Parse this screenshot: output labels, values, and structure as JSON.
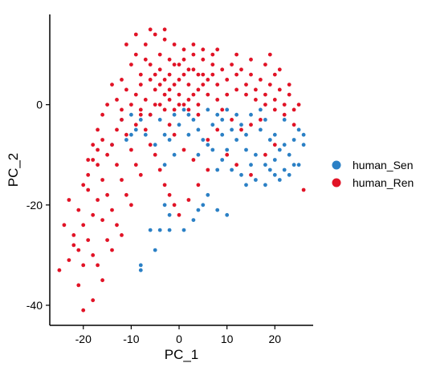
{
  "chart_data": {
    "type": "scatter",
    "title": "",
    "xlabel": "PC_1",
    "ylabel": "PC_2",
    "xlim": [
      -27,
      28
    ],
    "ylim": [
      -44,
      18
    ],
    "xticks": [
      -20,
      -10,
      0,
      10,
      20
    ],
    "xtick_labels": [
      "-20",
      "-10",
      "0",
      "10",
      "20"
    ],
    "yticks": [
      0,
      -20,
      -40
    ],
    "ytick_labels": [
      "0",
      "-20",
      "-40"
    ],
    "grid": false,
    "legend_position": "right",
    "series": [
      {
        "name": "human_Sen",
        "color": "#2B80C5",
        "points": [
          [
            -8,
            -33
          ],
          [
            -8,
            -32
          ],
          [
            -5,
            -29
          ],
          [
            -6,
            -25
          ],
          [
            -4,
            -25
          ],
          [
            -2,
            -25
          ],
          [
            1,
            -25
          ],
          [
            -3,
            -20
          ],
          [
            -2,
            -22
          ],
          [
            3,
            -23
          ],
          [
            4,
            -21
          ],
          [
            5,
            -20
          ],
          [
            6,
            -18
          ],
          [
            8,
            -21
          ],
          [
            10,
            -22
          ],
          [
            -7,
            -6
          ],
          [
            -5,
            -8
          ],
          [
            -3,
            -6
          ],
          [
            -2,
            -7
          ],
          [
            -10,
            -6
          ],
          [
            -11,
            -7
          ],
          [
            -9,
            -5
          ],
          [
            4,
            -5
          ],
          [
            7,
            -4
          ],
          [
            9,
            -3
          ],
          [
            11,
            -5
          ],
          [
            13,
            -4
          ],
          [
            15,
            -2
          ],
          [
            17,
            -1
          ],
          [
            18,
            -3
          ],
          [
            12,
            -7
          ],
          [
            14,
            -9
          ],
          [
            16,
            -10
          ],
          [
            18,
            -12
          ],
          [
            20,
            -11
          ],
          [
            21,
            -9
          ],
          [
            22,
            -8
          ],
          [
            23,
            -10
          ],
          [
            22,
            -13
          ],
          [
            20,
            -14
          ],
          [
            24,
            -7
          ],
          [
            25,
            -5
          ],
          [
            26,
            -6
          ],
          [
            24,
            -12
          ],
          [
            21,
            -15
          ],
          [
            19,
            -13
          ],
          [
            15,
            -12
          ],
          [
            13,
            -14
          ],
          [
            11,
            -13
          ],
          [
            9,
            -11
          ],
          [
            7,
            -9
          ],
          [
            5,
            -7
          ],
          [
            3,
            -3
          ],
          [
            6,
            -1
          ],
          [
            8,
            -2
          ],
          [
            10,
            -1
          ],
          [
            2,
            -2
          ],
          [
            0,
            -4
          ],
          [
            1,
            -1
          ],
          [
            -1,
            -2
          ],
          [
            -4,
            -3
          ],
          [
            -6,
            -2
          ],
          [
            -8,
            -3
          ],
          [
            -10,
            -2
          ],
          [
            16,
            -15
          ],
          [
            18,
            -16
          ],
          [
            23,
            -14
          ],
          [
            25,
            -12
          ],
          [
            26,
            -8
          ],
          [
            19,
            -7
          ],
          [
            17,
            -5
          ],
          [
            14,
            -6
          ],
          [
            12,
            -2
          ],
          [
            9,
            -6
          ],
          [
            6,
            -8
          ],
          [
            4,
            -10
          ],
          [
            2,
            -6
          ],
          [
            -12,
            -3
          ],
          [
            14,
            -16
          ],
          [
            20,
            -6
          ],
          [
            22,
            -3
          ],
          [
            -14,
            -8
          ],
          [
            10,
            -9
          ],
          [
            8,
            -13
          ],
          [
            -1,
            -10
          ],
          [
            -3,
            -12
          ]
        ]
      },
      {
        "name": "human_Ren",
        "color": "#E11326",
        "points": [
          [
            -25,
            -33
          ],
          [
            -20,
            -41
          ],
          [
            -18,
            -39
          ],
          [
            -21,
            -36
          ],
          [
            -23,
            -31
          ],
          [
            -21,
            -29
          ],
          [
            -19,
            -27
          ],
          [
            -17,
            -32
          ],
          [
            -16,
            -35
          ],
          [
            -22,
            -26
          ],
          [
            -20,
            -24
          ],
          [
            -18,
            -22
          ],
          [
            -21,
            -21
          ],
          [
            -23,
            -19
          ],
          [
            -19,
            -17
          ],
          [
            -17,
            -19
          ],
          [
            -16,
            -23
          ],
          [
            -15,
            -27
          ],
          [
            -14,
            -29
          ],
          [
            -18,
            -30
          ],
          [
            -20,
            -32
          ],
          [
            -22,
            -28
          ],
          [
            -24,
            -24
          ],
          [
            -19,
            -14
          ],
          [
            -17,
            -12
          ],
          [
            -16,
            -15
          ],
          [
            -15,
            -18
          ],
          [
            -14,
            -21
          ],
          [
            -13,
            -24
          ],
          [
            -12,
            -26
          ],
          [
            -15,
            -10
          ],
          [
            -14,
            -8
          ],
          [
            -13,
            -12
          ],
          [
            -12,
            -15
          ],
          [
            -11,
            -18
          ],
          [
            -10,
            -20
          ],
          [
            -16,
            -7
          ],
          [
            -17,
            -9
          ],
          [
            -18,
            -11
          ],
          [
            -13,
            -5
          ],
          [
            -12,
            -3
          ],
          [
            -11,
            -6
          ],
          [
            -10,
            -9
          ],
          [
            -9,
            -12
          ],
          [
            -8,
            -14
          ],
          [
            -9,
            -4
          ],
          [
            -8,
            -2
          ],
          [
            -7,
            -5
          ],
          [
            -6,
            -8
          ],
          [
            -5,
            -10
          ],
          [
            -4,
            -13
          ],
          [
            -3,
            -16
          ],
          [
            -2,
            -18
          ],
          [
            -1,
            -20
          ],
          [
            0,
            -22
          ],
          [
            2,
            -19
          ],
          [
            4,
            -16
          ],
          [
            6,
            -13
          ],
          [
            3,
            -11
          ],
          [
            1,
            -9
          ],
          [
            -1,
            -6
          ],
          [
            -2,
            -4
          ],
          [
            -10,
            8
          ],
          [
            -12,
            5
          ],
          [
            -11,
            3
          ],
          [
            -13,
            1
          ],
          [
            -9,
            10
          ],
          [
            -7,
            12
          ],
          [
            -5,
            14
          ],
          [
            -3,
            13
          ],
          [
            -1,
            12
          ],
          [
            1,
            11
          ],
          [
            3,
            10
          ],
          [
            5,
            9
          ],
          [
            7,
            8
          ],
          [
            -8,
            6
          ],
          [
            -6,
            5
          ],
          [
            -4,
            4
          ],
          [
            -2,
            3
          ],
          [
            0,
            2
          ],
          [
            2,
            1
          ],
          [
            4,
            0
          ],
          [
            -9,
            2
          ],
          [
            -7,
            1
          ],
          [
            -5,
            0
          ],
          [
            -3,
            -1
          ],
          [
            -1,
            -1
          ],
          [
            1,
            0
          ],
          [
            3,
            2
          ],
          [
            5,
            4
          ],
          [
            7,
            6
          ],
          [
            9,
            7
          ],
          [
            11,
            8
          ],
          [
            13,
            7
          ],
          [
            15,
            6
          ],
          [
            17,
            5
          ],
          [
            19,
            4
          ],
          [
            21,
            3
          ],
          [
            23,
            2
          ],
          [
            -6,
            8
          ],
          [
            -4,
            7
          ],
          [
            -2,
            6
          ],
          [
            0,
            5
          ],
          [
            2,
            4
          ],
          [
            4,
            3
          ],
          [
            6,
            2
          ],
          [
            8,
            1
          ],
          [
            10,
            2
          ],
          [
            12,
            3
          ],
          [
            14,
            4
          ],
          [
            16,
            3
          ],
          [
            18,
            2
          ],
          [
            20,
            1
          ],
          [
            22,
            0
          ],
          [
            24,
            -1
          ],
          [
            -8,
            4
          ],
          [
            -5,
            3
          ],
          [
            -3,
            2
          ],
          [
            -1,
            4
          ],
          [
            1,
            6
          ],
          [
            3,
            7
          ],
          [
            5,
            6
          ],
          [
            -7,
            9
          ],
          [
            -4,
            10
          ],
          [
            -2,
            9
          ],
          [
            0,
            8
          ],
          [
            2,
            7
          ],
          [
            4,
            6
          ],
          [
            6,
            5
          ],
          [
            8,
            4
          ],
          [
            10,
            5
          ],
          [
            12,
            6
          ],
          [
            14,
            2
          ],
          [
            16,
            1
          ],
          [
            18,
            0
          ],
          [
            20,
            -1
          ],
          [
            22,
            -2
          ],
          [
            17,
            -3
          ],
          [
            15,
            -4
          ],
          [
            13,
            -5
          ],
          [
            11,
            -3
          ],
          [
            9,
            -1
          ],
          [
            18,
            8
          ],
          [
            20,
            6
          ],
          [
            15,
            9
          ],
          [
            12,
            10
          ],
          [
            8,
            11
          ],
          [
            -3,
            15
          ],
          [
            -6,
            15
          ],
          [
            -9,
            14
          ],
          [
            -11,
            12
          ],
          [
            10,
            -10
          ],
          [
            12,
            -12
          ],
          [
            15,
            -14
          ],
          [
            18,
            -10
          ],
          [
            20,
            -8
          ],
          [
            6,
            -7
          ],
          [
            8,
            -5
          ],
          [
            -14,
            4
          ],
          [
            -15,
            0
          ],
          [
            -16,
            -2
          ],
          [
            -17,
            -5
          ],
          [
            -18,
            -8
          ],
          [
            -19,
            -11
          ],
          [
            -20,
            -16
          ],
          [
            26,
            -17
          ],
          [
            24,
            -4
          ],
          [
            25,
            0
          ],
          [
            23,
            4
          ],
          [
            21,
            7
          ],
          [
            19,
            10
          ],
          [
            -4,
            0
          ],
          [
            -6,
            -2
          ],
          [
            -8,
            -1
          ],
          [
            -10,
            0
          ],
          [
            -12,
            -1
          ],
          [
            -2,
            1
          ],
          [
            0,
            0
          ],
          [
            2,
            -1
          ],
          [
            4,
            -2
          ],
          [
            -5,
            6
          ],
          [
            -3,
            5
          ],
          [
            -1,
            8
          ],
          [
            1,
            9
          ],
          [
            3,
            12
          ],
          [
            5,
            11
          ],
          [
            7,
            10
          ]
        ]
      }
    ]
  }
}
